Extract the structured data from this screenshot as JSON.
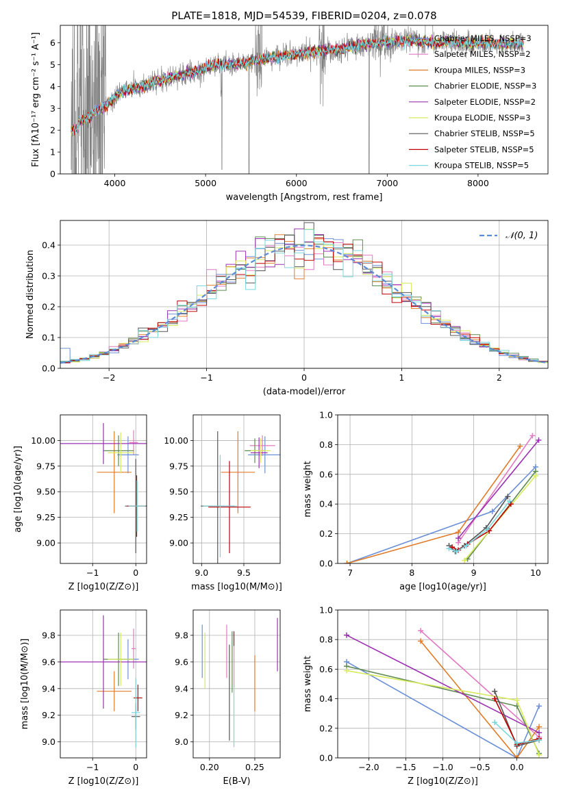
{
  "chart_data": [
    {
      "type": "line",
      "title": "PLATE=1818, MJD=54539, FIBERID=0204, z=0.078",
      "xlabel": "wavelength [Angstrom, rest frame]",
      "ylabel": "Flux [fλ10⁻¹⁷ erg cm⁻² s⁻¹ A⁻¹]",
      "xlim": [
        3400,
        8770
      ],
      "ylim": [
        0,
        6.8
      ],
      "xticks": [
        4000,
        5000,
        6000,
        7000,
        8000
      ],
      "yticks": [
        0,
        1,
        2,
        3,
        4,
        5,
        6
      ],
      "grid": false,
      "legend_position": "right",
      "series": [
        {
          "name": "Chabrier MILES, NSSP=3",
          "color": "#6a8fd6"
        },
        {
          "name": "Salpeter MILES, NSSP=2",
          "color": "#e377c2"
        },
        {
          "name": "Kroupa MILES, NSSP=3",
          "color": "#e07b28"
        },
        {
          "name": "Chabrier ELODIE, NSSP=3",
          "color": "#5e8a54"
        },
        {
          "name": "Salpeter ELODIE, NSSP=2",
          "color": "#9b30b0"
        },
        {
          "name": "Kroupa ELODIE, NSSP=3",
          "color": "#d6ea5a"
        },
        {
          "name": "Chabrier STELIB, NSSP=5",
          "color": "#555555"
        },
        {
          "name": "Salpeter STELIB, NSSP=5",
          "color": "#c00000"
        },
        {
          "name": "Kroupa STELIB, NSSP=5",
          "color": "#7ad6dc"
        }
      ],
      "data_color": "#808080",
      "continuum": {
        "x": [
          3520,
          3700,
          3800,
          3900,
          4000,
          4100,
          4300,
          4500,
          4700,
          4900,
          5100,
          5300,
          5500,
          5700,
          5900,
          6100,
          6300,
          6500,
          6700,
          6900,
          7100,
          7300,
          7500,
          7700,
          7900,
          8100,
          8300,
          8500
        ],
        "y": [
          2.3,
          2.5,
          2.9,
          3.1,
          3.5,
          3.8,
          4.0,
          4.3,
          4.5,
          4.7,
          5.0,
          5.0,
          5.15,
          5.3,
          5.4,
          5.55,
          5.65,
          5.7,
          5.9,
          6.0,
          6.05,
          6.1,
          6.0,
          6.05,
          5.95,
          6.0,
          5.95,
          6.0
        ]
      }
    },
    {
      "type": "line",
      "xlabel": "(data-model)/error",
      "ylabel": "Normed distribution",
      "xlim": [
        -2.5,
        2.5
      ],
      "ylim": [
        0,
        0.48
      ],
      "xticks": [
        -2,
        -1,
        0,
        1,
        2
      ],
      "yticks": [
        0.0,
        0.1,
        0.2,
        0.3,
        0.4
      ],
      "grid": true,
      "legend": [
        "𝒩(0, 1)"
      ],
      "legend_position": "top-right",
      "histogram_bins": [
        -2.5,
        2.5,
        50
      ],
      "gaussian": {
        "mu": 0,
        "sigma": 1,
        "color": "#5b8bd6",
        "style": "dashed"
      }
    },
    {
      "type": "scatter",
      "xlabel": "Z [log10(Z/Z⊙)]",
      "ylabel": "age  [log10(age/yr)]",
      "xlim": [
        -1.75,
        0.25
      ],
      "ylim": [
        8.8,
        10.25
      ],
      "xticks": [
        -1,
        0
      ],
      "yticks": [
        9.0,
        9.25,
        9.5,
        9.75,
        10.0
      ],
      "grid": true,
      "points": [
        {
          "x": -0.18,
          "y": 9.86,
          "xerr": 0.25,
          "yerr": 0.18,
          "color": "#6a8fd6"
        },
        {
          "x": -0.05,
          "y": 9.98,
          "xerr": 0.1,
          "yerr": 0.12,
          "color": "#e377c2"
        },
        {
          "x": -0.5,
          "y": 9.69,
          "xerr": 0.4,
          "yerr": 0.4,
          "color": "#e07b28"
        },
        {
          "x": -0.4,
          "y": 9.9,
          "xerr": 0.35,
          "yerr": 0.15,
          "color": "#5e8a54"
        },
        {
          "x": -0.75,
          "y": 9.97,
          "xerr": 1.0,
          "yerr": 0.2,
          "color": "#9b30b0"
        },
        {
          "x": -0.35,
          "y": 9.88,
          "xerr": 0.3,
          "yerr": 0.2,
          "color": "#d6ea5a"
        },
        {
          "x": 0.0,
          "y": 9.36,
          "xerr": 0.25,
          "yerr": 0.46,
          "color": "#555555"
        },
        {
          "x": 0.02,
          "y": 9.36,
          "xerr": 0.22,
          "yerr": 0.3,
          "color": "#c00000"
        },
        {
          "x": 0.03,
          "y": 9.36,
          "xerr": 0.2,
          "yerr": 0.25,
          "color": "#7ad6dc"
        }
      ]
    },
    {
      "type": "scatter",
      "xlabel": "mass [log10(M/M⊙)]",
      "ylabel": "",
      "xlim": [
        8.9,
        9.93
      ],
      "ylim": [
        8.8,
        10.25
      ],
      "xticks": [
        9.0,
        9.5
      ],
      "yticks": [
        9.0,
        9.25,
        9.5,
        9.75,
        10.0
      ],
      "grid": true,
      "points": [
        {
          "x": 9.75,
          "y": 9.86,
          "xerr": 0.2,
          "yerr": 0.18,
          "color": "#6a8fd6"
        },
        {
          "x": 9.72,
          "y": 9.95,
          "xerr": 0.15,
          "yerr": 0.1,
          "color": "#e377c2"
        },
        {
          "x": 9.43,
          "y": 9.69,
          "xerr": 0.2,
          "yerr": 0.4,
          "color": "#e07b28"
        },
        {
          "x": 9.63,
          "y": 9.9,
          "xerr": 0.12,
          "yerr": 0.12,
          "color": "#5e8a54"
        },
        {
          "x": 9.68,
          "y": 9.88,
          "xerr": 0.1,
          "yerr": 0.15,
          "color": "#9b30b0"
        },
        {
          "x": 9.7,
          "y": 9.9,
          "xerr": 0.12,
          "yerr": 0.12,
          "color": "#d6ea5a"
        },
        {
          "x": 9.19,
          "y": 9.36,
          "xerr": 0.2,
          "yerr": 0.73,
          "color": "#555555"
        },
        {
          "x": 9.33,
          "y": 9.35,
          "xerr": 0.25,
          "yerr": 0.45,
          "color": "#c00000"
        },
        {
          "x": 9.22,
          "y": 9.36,
          "xerr": 0.2,
          "yerr": 0.5,
          "color": "#7ad6dc"
        }
      ]
    },
    {
      "type": "line",
      "xlabel": "age  [log10(age/yr)]",
      "ylabel": "mass weight",
      "xlim": [
        6.8,
        10.2
      ],
      "ylim": [
        0,
        1
      ],
      "xticks": [
        7,
        8,
        9,
        10
      ],
      "yticks": [
        0.0,
        0.2,
        0.4,
        0.6,
        0.8,
        1.0
      ],
      "grid": true,
      "series": [
        {
          "color": "#6a8fd6",
          "x": [
            6.95,
            9.3,
            10.0
          ],
          "y": [
            0.0,
            0.35,
            0.65
          ]
        },
        {
          "color": "#e377c2",
          "x": [
            8.75,
            9.95
          ],
          "y": [
            0.14,
            0.86
          ]
        },
        {
          "color": "#e07b28",
          "x": [
            6.95,
            8.75,
            9.75
          ],
          "y": [
            0.0,
            0.21,
            0.79
          ]
        },
        {
          "color": "#5e8a54",
          "x": [
            8.9,
            10.0
          ],
          "y": [
            0.03,
            0.62
          ]
        },
        {
          "color": "#9b30b0",
          "x": [
            8.75,
            10.05
          ],
          "y": [
            0.17,
            0.83
          ]
        },
        {
          "color": "#d6ea5a",
          "x": [
            8.85,
            10.0
          ],
          "y": [
            0.02,
            0.59
          ]
        },
        {
          "color": "#555555",
          "x": [
            8.6,
            8.7,
            8.85,
            9.2,
            9.55
          ],
          "y": [
            0.12,
            0.08,
            0.12,
            0.24,
            0.45
          ]
        },
        {
          "color": "#c00000",
          "x": [
            8.65,
            8.75,
            8.9,
            9.25,
            9.6
          ],
          "y": [
            0.11,
            0.09,
            0.13,
            0.22,
            0.4
          ]
        },
        {
          "color": "#7ad6dc",
          "x": [
            8.6,
            8.72,
            8.88,
            9.22,
            9.58
          ],
          "y": [
            0.1,
            0.08,
            0.12,
            0.23,
            0.42
          ]
        }
      ]
    },
    {
      "type": "scatter",
      "xlabel": "Z [log10(Z/Z⊙)]",
      "ylabel": "mass [log10(M/M⊙)]",
      "xlim": [
        -1.75,
        0.25
      ],
      "ylim": [
        8.88,
        9.99
      ],
      "xticks": [
        -1,
        0
      ],
      "yticks": [
        9.0,
        9.2,
        9.4,
        9.6,
        9.8
      ],
      "grid": true,
      "points": [
        {
          "x": -0.18,
          "y": 9.62,
          "xerr": 0.25,
          "yerr": 0.15,
          "color": "#6a8fd6"
        },
        {
          "x": -0.05,
          "y": 9.7,
          "xerr": 0.05,
          "yerr": 0.15,
          "color": "#e377c2"
        },
        {
          "x": -0.5,
          "y": 9.38,
          "xerr": 0.4,
          "yerr": 0.15,
          "color": "#e07b28"
        },
        {
          "x": -0.4,
          "y": 9.62,
          "xerr": 0.35,
          "yerr": 0.2,
          "color": "#5e8a54"
        },
        {
          "x": -0.75,
          "y": 9.6,
          "xerr": 1.0,
          "yerr": 0.35,
          "color": "#9b30b0"
        },
        {
          "x": -0.35,
          "y": 9.62,
          "xerr": 0.3,
          "yerr": 0.2,
          "color": "#d6ea5a"
        },
        {
          "x": 0.0,
          "y": 9.19,
          "xerr": 0.1,
          "yerr": 0.1,
          "color": "#555555"
        },
        {
          "x": 0.05,
          "y": 9.33,
          "xerr": 0.1,
          "yerr": 0.1,
          "color": "#c00000"
        },
        {
          "x": 0.0,
          "y": 9.22,
          "xerr": 0.1,
          "yerr": 0.26,
          "color": "#7ad6dc"
        }
      ]
    },
    {
      "type": "scatter",
      "xlabel": "E(B-V)",
      "ylabel": "",
      "xlim": [
        0.182,
        0.278
      ],
      "ylim": [
        8.88,
        9.99
      ],
      "xticks": [
        0.2,
        0.25
      ],
      "yticks": [
        9.0,
        9.2,
        9.4,
        9.6,
        9.8
      ],
      "grid": true,
      "points": [
        {
          "x": 0.192,
          "y": 9.68,
          "yerr": 0.2,
          "color": "#6a8fd6"
        },
        {
          "x": 0.219,
          "y": 9.68,
          "yerr": 0.2,
          "color": "#e377c2"
        },
        {
          "x": 0.25,
          "y": 9.44,
          "yerr": 0.21,
          "color": "#e07b28"
        },
        {
          "x": 0.225,
          "y": 9.6,
          "yerr": 0.23,
          "color": "#5e8a54"
        },
        {
          "x": 0.275,
          "y": 9.73,
          "yerr": 0.2,
          "color": "#9b30b0"
        },
        {
          "x": 0.195,
          "y": 9.61,
          "yerr": 0.21,
          "color": "#d6ea5a"
        },
        {
          "x": 0.222,
          "y": 9.37,
          "yerr": 0.36,
          "color": "#555555"
        },
        {
          "x": 0.227,
          "y": 9.62,
          "yerr": 0.21,
          "color": "#c00000"
        },
        {
          "x": 0.227,
          "y": 9.34,
          "yerr": 0.38,
          "color": "#7ad6dc"
        }
      ]
    },
    {
      "type": "line",
      "xlabel": "Z [log10(Z/Z⊙)]",
      "ylabel": "mass weight",
      "xlim": [
        -2.42,
        0.42
      ],
      "ylim": [
        0,
        1
      ],
      "xticks": [
        -2.0,
        -1.5,
        -1.0,
        -0.5,
        0.0
      ],
      "yticks": [
        0.0,
        0.2,
        0.4,
        0.6,
        0.8,
        1.0
      ],
      "grid": true,
      "series": [
        {
          "color": "#6a8fd6",
          "x": [
            -2.3,
            0.0,
            0.3
          ],
          "y": [
            0.65,
            0.0,
            0.35
          ]
        },
        {
          "color": "#e377c2",
          "x": [
            -1.3,
            0.3
          ],
          "y": [
            0.86,
            0.14
          ]
        },
        {
          "color": "#e07b28",
          "x": [
            -1.3,
            0.0,
            0.3
          ],
          "y": [
            0.79,
            0.0,
            0.21
          ]
        },
        {
          "color": "#5e8a54",
          "x": [
            -2.3,
            0.0,
            0.3
          ],
          "y": [
            0.62,
            0.35,
            0.03
          ]
        },
        {
          "color": "#9b30b0",
          "x": [
            -2.3,
            0.3
          ],
          "y": [
            0.83,
            0.17
          ]
        },
        {
          "color": "#d6ea5a",
          "x": [
            -2.3,
            0.0,
            0.3
          ],
          "y": [
            0.59,
            0.39,
            0.02
          ]
        },
        {
          "color": "#555555",
          "x": [
            -0.3,
            0.0,
            0.3
          ],
          "y": [
            0.45,
            0.08,
            0.12
          ]
        },
        {
          "color": "#c00000",
          "x": [
            -0.3,
            0.0,
            0.3
          ],
          "y": [
            0.4,
            0.09,
            0.13
          ]
        },
        {
          "color": "#7ad6dc",
          "x": [
            -0.3,
            0.0,
            0.3
          ],
          "y": [
            0.24,
            0.1,
            0.12
          ]
        }
      ]
    }
  ]
}
